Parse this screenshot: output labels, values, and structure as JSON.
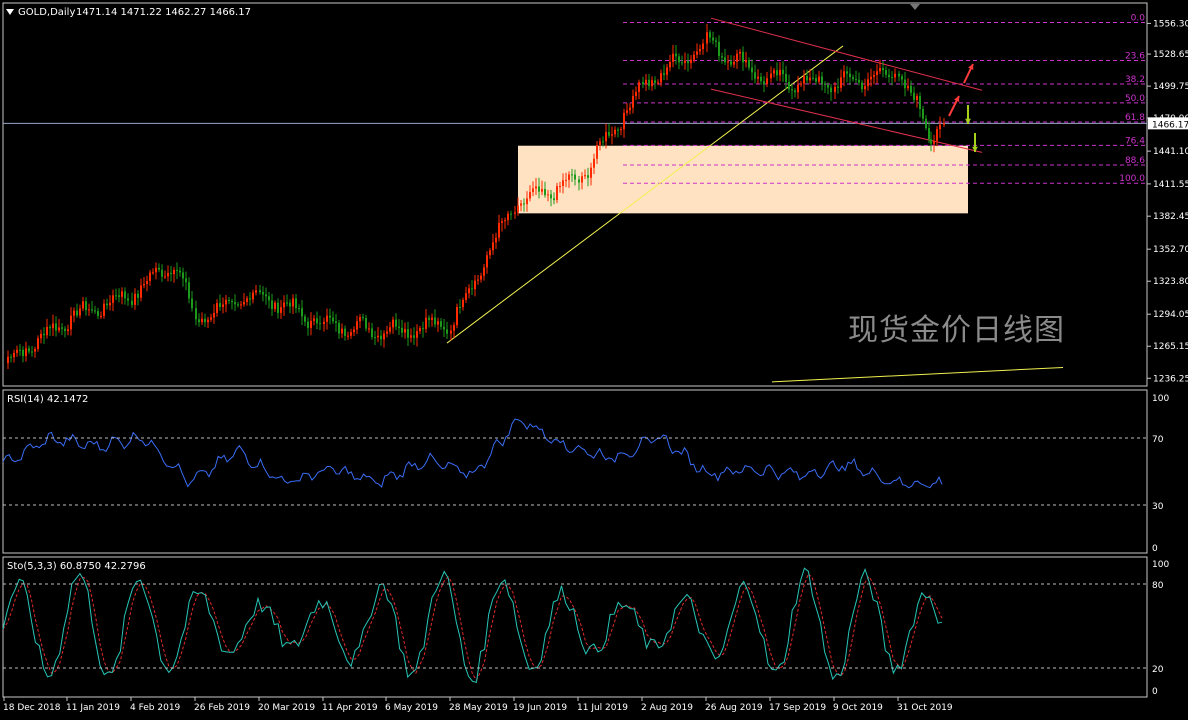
{
  "watermark": "现货金价日线图",
  "colors": {
    "background": "#000000",
    "frame": "#c8c8c8",
    "text": "#ffffff",
    "bull": "#ff2a00",
    "bear": "#1c9a1c",
    "fib": "#cc33cc",
    "channel": "#e0304c",
    "trendline": "#f0f050",
    "zone": "#ffe2c2",
    "rsi": "#3a6df5",
    "stoch_main": "#27c7b8",
    "stoch_signal": "#e02a2a",
    "arrow_up": "#ff3b3b",
    "arrow_down": "#a6d21e",
    "current_price_line": "#9aa6c8"
  },
  "price_panel": {
    "label": "GOLD,Daily",
    "ohlc": "1471.14 1471.22 1462.27 1466.17",
    "current_price": "1466.17",
    "ylim": [
      1232,
      1572
    ],
    "ticks": [
      "1556.30",
      "1528.65",
      "1499.75",
      "1470.90",
      "1441.10",
      "1411.55",
      "1382.45",
      "1352.70",
      "1323.80",
      "1294.05",
      "1265.15",
      "1236.25"
    ],
    "fib_levels": [
      {
        "label": "0.0",
        "value": 1557.1
      },
      {
        "label": "23.6",
        "value": 1522.9
      },
      {
        "label": "38.2",
        "value": 1501.6
      },
      {
        "label": "50.0",
        "value": 1484.6
      },
      {
        "label": "61.8",
        "value": 1467.4
      },
      {
        "label": "76.4",
        "value": 1446.3
      },
      {
        "label": "88.6",
        "value": 1428.6
      },
      {
        "label": "100.0",
        "value": 1412.2
      }
    ]
  },
  "rsi_panel": {
    "label": "RSI(14) 42.1472",
    "levels": [
      "70",
      "30"
    ],
    "scale": [
      "100",
      "0"
    ]
  },
  "stoch_panel": {
    "label": "Sto(5,3,3) 60.8750 42.2796",
    "levels": [
      "80",
      "20"
    ],
    "scale": [
      "100",
      "0"
    ]
  },
  "x_axis": {
    "labels": [
      "18 Dec 2018",
      "11 Jan 2019",
      "4 Feb 2019",
      "26 Feb 2019",
      "20 Mar 2019",
      "11 Apr 2019",
      "6 May 2019",
      "28 May 2019",
      "19 Jun 2019",
      "11 Jul 2019",
      "2 Aug 2019",
      "26 Aug 2019",
      "17 Sep 2019",
      "9 Oct 2019",
      "31 Oct 2019"
    ]
  },
  "chart_data": {
    "type": "candlestick",
    "symbol": "GOLD",
    "timeframe": "Daily",
    "last_ohlc": {
      "open": 1471.14,
      "high": 1471.22,
      "low": 1462.27,
      "close": 1466.17
    },
    "price_anchors": [
      {
        "date": "18 Dec 2018",
        "price": 1250
      },
      {
        "date": "11 Jan 2019",
        "price": 1290
      },
      {
        "date": "4 Feb 2019",
        "price": 1312
      },
      {
        "date": "20 Feb 2019",
        "price": 1342
      },
      {
        "date": "26 Feb 2019",
        "price": 1290
      },
      {
        "date": "20 Mar 2019",
        "price": 1312
      },
      {
        "date": "11 Apr 2019",
        "price": 1285
      },
      {
        "date": "6 May 2019",
        "price": 1280
      },
      {
        "date": "28 May 2019",
        "price": 1285
      },
      {
        "date": "19 Jun 2019",
        "price": 1392
      },
      {
        "date": "11 Jul 2019",
        "price": 1415
      },
      {
        "date": "2 Aug 2019",
        "price": 1500
      },
      {
        "date": "26 Aug 2019",
        "price": 1540
      },
      {
        "date": "17 Sep 2019",
        "price": 1505
      },
      {
        "date": "9 Oct 2019",
        "price": 1502
      },
      {
        "date": "31 Oct 2019",
        "price": 1512
      },
      {
        "date": "12 Nov 2019",
        "price": 1455
      },
      {
        "date": "15 Nov 2019",
        "price": 1466
      }
    ],
    "rsi_anchors": [
      55,
      72,
      67,
      73,
      43,
      64,
      43,
      52,
      43,
      58,
      48,
      85,
      67,
      59,
      73,
      49,
      52,
      48,
      55,
      43,
      42
    ],
    "stoch_cycle_points": 232,
    "ylim": [
      1232,
      1572
    ],
    "rsi_ylim": [
      0,
      100
    ],
    "stoch_ylim": [
      0,
      100
    ]
  }
}
